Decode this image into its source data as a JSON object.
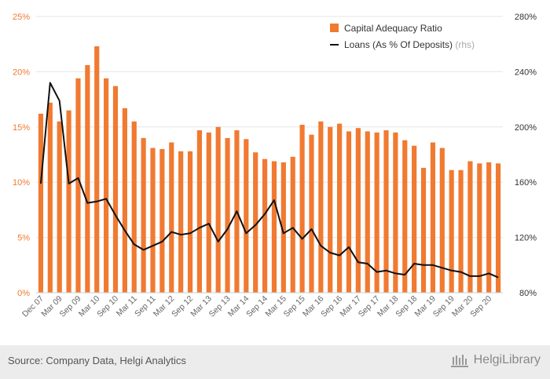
{
  "colors": {
    "bar": "#f07a31",
    "line": "#111111",
    "grid": "#e5e5e5",
    "left_axis_text": "#f07a31",
    "right_axis_text": "#333333"
  },
  "chart_data": {
    "type": "bar",
    "x_tick_labels": [
      "Dec 07",
      "Mar 09",
      "Sep 09",
      "Mar 10",
      "Sep 10",
      "Mar 11",
      "Sep 11",
      "Mar 12",
      "Sep 12",
      "Mar 13",
      "Sep 13",
      "Mar 14",
      "Sep 14",
      "Mar 15",
      "Sep 15",
      "Mar 16",
      "Sep 16",
      "Mar 17",
      "Sep 17",
      "Mar 18",
      "Sep 18",
      "Mar 19",
      "Sep 19",
      "Mar 20",
      "Sep 20"
    ],
    "y_left": {
      "ticks": [
        "0%",
        "5%",
        "10%",
        "15%",
        "20%",
        "25%"
      ],
      "ylim": [
        0,
        25
      ]
    },
    "y_right": {
      "ticks": [
        "80%",
        "120%",
        "160%",
        "200%",
        "240%",
        "280%"
      ],
      "ylim": [
        80,
        280
      ]
    },
    "series": [
      {
        "name": "Capital Adequacy Ratio",
        "type": "bar",
        "axis": "left",
        "values": [
          16.2,
          17.2,
          15.5,
          16.5,
          19.4,
          20.6,
          22.3,
          19.4,
          18.7,
          16.7,
          15.5,
          14.0,
          13.1,
          13.0,
          13.6,
          12.8,
          12.8,
          14.7,
          14.5,
          15.0,
          14.0,
          14.7,
          13.9,
          12.7,
          12.1,
          11.9,
          11.8,
          12.3,
          15.2,
          14.3,
          15.5,
          15.0,
          15.3,
          14.6,
          14.9,
          14.6,
          14.5,
          14.7,
          14.5,
          13.8,
          13.3,
          11.3,
          13.6,
          13.1,
          11.1,
          11.1,
          11.9,
          11.7,
          11.8,
          11.7
        ]
      },
      {
        "name": "Loans (As % Of Deposits)",
        "name_suffix": "(rhs)",
        "type": "line",
        "axis": "right",
        "values": [
          159,
          232,
          219,
          159,
          163,
          145,
          146,
          148,
          136,
          125,
          115,
          111,
          114,
          117,
          124,
          122,
          123,
          127,
          130,
          117,
          126,
          139,
          123,
          129,
          137,
          147,
          123,
          127,
          119,
          126,
          114,
          109,
          107,
          113,
          102,
          101,
          95,
          96,
          94,
          93,
          101,
          100,
          100,
          98,
          96,
          95,
          92,
          92,
          94,
          91
        ]
      }
    ],
    "legend_position": "top-right",
    "grid": true
  },
  "footer": {
    "source": "Source: Company Data, Helgi Analytics",
    "brand": "HelgiLibrary"
  }
}
